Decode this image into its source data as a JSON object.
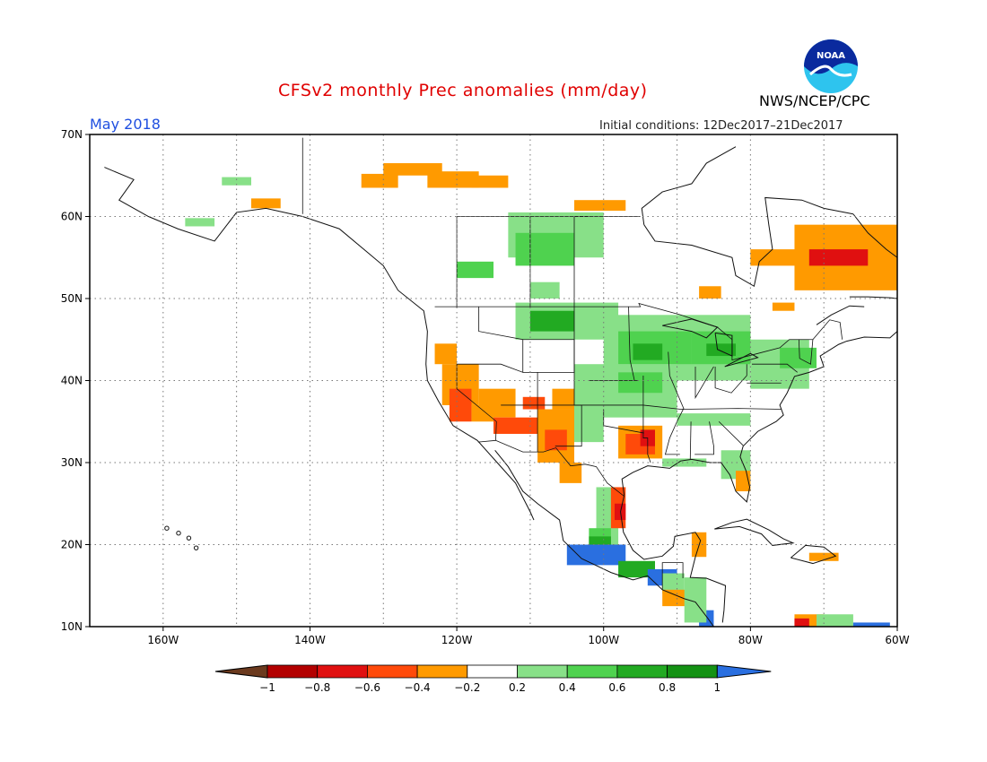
{
  "title": "CFSv2 monthly Prec anomalies (mm/day)",
  "month": "May 2018",
  "initial_conditions": "Initial conditions: 12Dec2017–21Dec2017",
  "agency": "NWS/NCEP/CPC",
  "logo_text": "NOAA",
  "map": {
    "lon_range": [
      -170,
      -60
    ],
    "lat_range": [
      10,
      70
    ],
    "lat_ticks": [
      "10N",
      "20N",
      "30N",
      "40N",
      "50N",
      "60N",
      "70N"
    ],
    "lon_ticks": [
      "160W",
      "140W",
      "120W",
      "100W",
      "80W",
      "60W"
    ],
    "grid": "dotted"
  },
  "colorbar": {
    "labels": [
      "−1",
      "−0.8",
      "−0.6",
      "−0.4",
      "−0.2",
      "0.2",
      "0.4",
      "0.6",
      "0.8",
      "1"
    ],
    "colors": [
      "#6b3a1e",
      "#b30000",
      "#e01010",
      "#ff4a0a",
      "#ff9a00",
      "#ffffff",
      "#88e088",
      "#4fd24f",
      "#22aa22",
      "#149214",
      "#2a6fe0"
    ]
  },
  "colors": {
    "dry_strong": "#b30000",
    "dry_mid": "#e01010",
    "dry": "#ff4a0a",
    "dry_weak": "#ff9a00",
    "wet_weak": "#88e088",
    "wet": "#4fd24f",
    "wet_mid": "#22aa22",
    "wet_strong": "#149214",
    "wet_max": "#2a6fe0"
  }
}
